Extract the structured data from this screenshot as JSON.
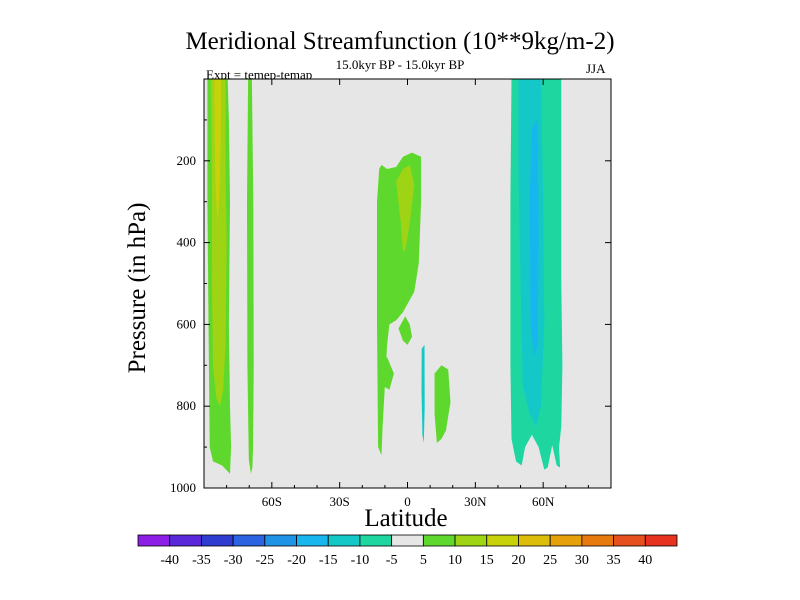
{
  "chart_data": {
    "type": "contour",
    "title": "Meridional Streamfunction (10**9kg/m-2)",
    "experiment": "Expt = temep-temap",
    "subtitle": "15.0kyr BP - 15.0kyr BP",
    "season": "JJA",
    "xlabel": "Latitude",
    "ylabel": "Pressure (in hPa)",
    "xlim": [
      -90,
      90
    ],
    "ylim": [
      1000,
      0
    ],
    "x_ticks": [
      {
        "value": -60,
        "label": "60S"
      },
      {
        "value": -30,
        "label": "30S"
      },
      {
        "value": 0,
        "label": "0"
      },
      {
        "value": 30,
        "label": "30N"
      },
      {
        "value": 60,
        "label": "60N"
      }
    ],
    "y_ticks": [
      {
        "value": 200,
        "label": "200"
      },
      {
        "value": 400,
        "label": "400"
      },
      {
        "value": 600,
        "label": "600"
      },
      {
        "value": 800,
        "label": "800"
      },
      {
        "value": 1000,
        "label": "1000"
      }
    ],
    "background_color": "#e6e6e6",
    "colorbar": {
      "levels": [
        -40,
        -35,
        -30,
        -25,
        -20,
        -15,
        -10,
        -5,
        5,
        10,
        15,
        20,
        25,
        30,
        35,
        40
      ],
      "level_labels": [
        "-40",
        "-35",
        "-30",
        "-25",
        "-20",
        "-15",
        "-10",
        "-5",
        "5",
        "10",
        "15",
        "20",
        "25",
        "30",
        "35",
        "40"
      ],
      "colors": [
        "#8c1ee6",
        "#5a28d8",
        "#2e3ccf",
        "#2c63e0",
        "#1f93e6",
        "#18b6ee",
        "#14c8c8",
        "#1ed6a0",
        "#e6e6e6",
        "#5fd82e",
        "#9fd414",
        "#c8d20a",
        "#dcbe0a",
        "#e6a00a",
        "#e67a0f",
        "#e6501e",
        "#e6321e"
      ]
    },
    "contours": [
      {
        "name": "sh-cell-outer",
        "color": "#5fd82e",
        "points": [
          [
            -88.5,
            0
          ],
          [
            -79.5,
            0
          ],
          [
            -79,
            100
          ],
          [
            -78.5,
            300
          ],
          [
            -79,
            600
          ],
          [
            -78.5,
            800
          ],
          [
            -78,
            900
          ],
          [
            -78.5,
            965
          ],
          [
            -82,
            945
          ],
          [
            -86,
            935
          ],
          [
            -87.5,
            900
          ],
          [
            -88,
            600
          ],
          [
            -88.5,
            300
          ]
        ]
      },
      {
        "name": "sh-cell-mid",
        "color": "#9fd414",
        "points": [
          [
            -87,
            0
          ],
          [
            -80.5,
            0
          ],
          [
            -80.5,
            200
          ],
          [
            -80,
            400
          ],
          [
            -80.5,
            650
          ],
          [
            -81.5,
            760
          ],
          [
            -83,
            800
          ],
          [
            -84.5,
            780
          ],
          [
            -86,
            700
          ],
          [
            -86.5,
            500
          ],
          [
            -86.5,
            250
          ]
        ]
      },
      {
        "name": "sh-cell-core",
        "color": "#c8d20a",
        "points": [
          [
            -85.5,
            0
          ],
          [
            -82.5,
            0
          ],
          [
            -82.5,
            100
          ],
          [
            -83,
            250
          ],
          [
            -84,
            350
          ],
          [
            -85,
            250
          ]
        ]
      },
      {
        "name": "sh-narrow-band",
        "color": "#5fd82e",
        "points": [
          [
            -70.5,
            0
          ],
          [
            -68.8,
            0
          ],
          [
            -68.2,
            300
          ],
          [
            -68,
            700
          ],
          [
            -68.3,
            900
          ],
          [
            -68.6,
            950
          ],
          [
            -69.3,
            965
          ],
          [
            -70.2,
            930
          ],
          [
            -70.8,
            700
          ],
          [
            -71,
            300
          ]
        ]
      },
      {
        "name": "eq-upper",
        "color": "#5fd82e",
        "points": [
          [
            -11.5,
            210
          ],
          [
            -9,
            220
          ],
          [
            -5,
            215
          ],
          [
            -2,
            190
          ],
          [
            2,
            180
          ],
          [
            6,
            190
          ],
          [
            6,
            300
          ],
          [
            5,
            450
          ],
          [
            3,
            520
          ],
          [
            1,
            540
          ],
          [
            -2,
            570
          ],
          [
            -5,
            590
          ],
          [
            -8,
            600
          ],
          [
            -9,
            650
          ],
          [
            -10,
            750
          ],
          [
            -11,
            850
          ],
          [
            -11.5,
            920
          ],
          [
            -13,
            900
          ],
          [
            -13.5,
            600
          ],
          [
            -13.5,
            300
          ],
          [
            -12.5,
            220
          ]
        ]
      },
      {
        "name": "eq-upper-core",
        "color": "#9fd414",
        "points": [
          [
            -5,
            250
          ],
          [
            -2,
            220
          ],
          [
            1,
            210
          ],
          [
            3,
            260
          ],
          [
            1,
            350
          ],
          [
            -1,
            420
          ],
          [
            -2,
            420
          ],
          [
            -3,
            350
          ]
        ]
      },
      {
        "name": "eq-patch-a",
        "color": "#5fd82e",
        "points": [
          [
            -1,
            580
          ],
          [
            1,
            600
          ],
          [
            2,
            630
          ],
          [
            0,
            650
          ],
          [
            -2,
            640
          ],
          [
            -4,
            610
          ]
        ]
      },
      {
        "name": "eq-patch-b",
        "color": "#5fd82e",
        "points": [
          [
            -12,
            700
          ],
          [
            -9,
            680
          ],
          [
            -6,
            720
          ],
          [
            -8,
            760
          ],
          [
            -11,
            750
          ]
        ]
      },
      {
        "name": "ne-blob",
        "color": "#5fd82e",
        "points": [
          [
            12,
            720
          ],
          [
            15,
            700
          ],
          [
            18,
            710
          ],
          [
            19,
            790
          ],
          [
            17,
            860
          ],
          [
            15,
            880
          ],
          [
            13,
            890
          ],
          [
            12,
            820
          ]
        ]
      },
      {
        "name": "small-cyan-stripe",
        "color": "#14c8c8",
        "points": [
          [
            6.3,
            660
          ],
          [
            7.5,
            650
          ],
          [
            7.6,
            800
          ],
          [
            7.2,
            890
          ],
          [
            6.6,
            870
          ],
          [
            6.2,
            760
          ]
        ]
      },
      {
        "name": "nh-outer",
        "color": "#1ed6a0",
        "points": [
          [
            46,
            0
          ],
          [
            68,
            0
          ],
          [
            68,
            500
          ],
          [
            68.5,
            700
          ],
          [
            68,
            850
          ],
          [
            67,
            900
          ],
          [
            67.5,
            950
          ],
          [
            66,
            945
          ],
          [
            64,
            895
          ],
          [
            62,
            950
          ],
          [
            60.5,
            955
          ],
          [
            58,
            900
          ],
          [
            55,
            870
          ],
          [
            52,
            900
          ],
          [
            50.5,
            945
          ],
          [
            48,
            935
          ],
          [
            46,
            880
          ],
          [
            45.5,
            700
          ],
          [
            45.5,
            300
          ]
        ]
      },
      {
        "name": "nh-inner",
        "color": "#14c8c8",
        "points": [
          [
            49,
            0
          ],
          [
            59,
            0
          ],
          [
            60,
            300
          ],
          [
            60.5,
            600
          ],
          [
            59,
            800
          ],
          [
            57,
            850
          ],
          [
            54,
            820
          ],
          [
            51,
            750
          ],
          [
            50,
            500
          ],
          [
            49,
            200
          ]
        ]
      },
      {
        "name": "nh-core",
        "color": "#18b6ee",
        "points": [
          [
            55,
            120
          ],
          [
            57.5,
            100
          ],
          [
            58,
            400
          ],
          [
            57.5,
            650
          ],
          [
            56,
            680
          ],
          [
            54.5,
            600
          ],
          [
            54,
            300
          ]
        ]
      }
    ]
  }
}
